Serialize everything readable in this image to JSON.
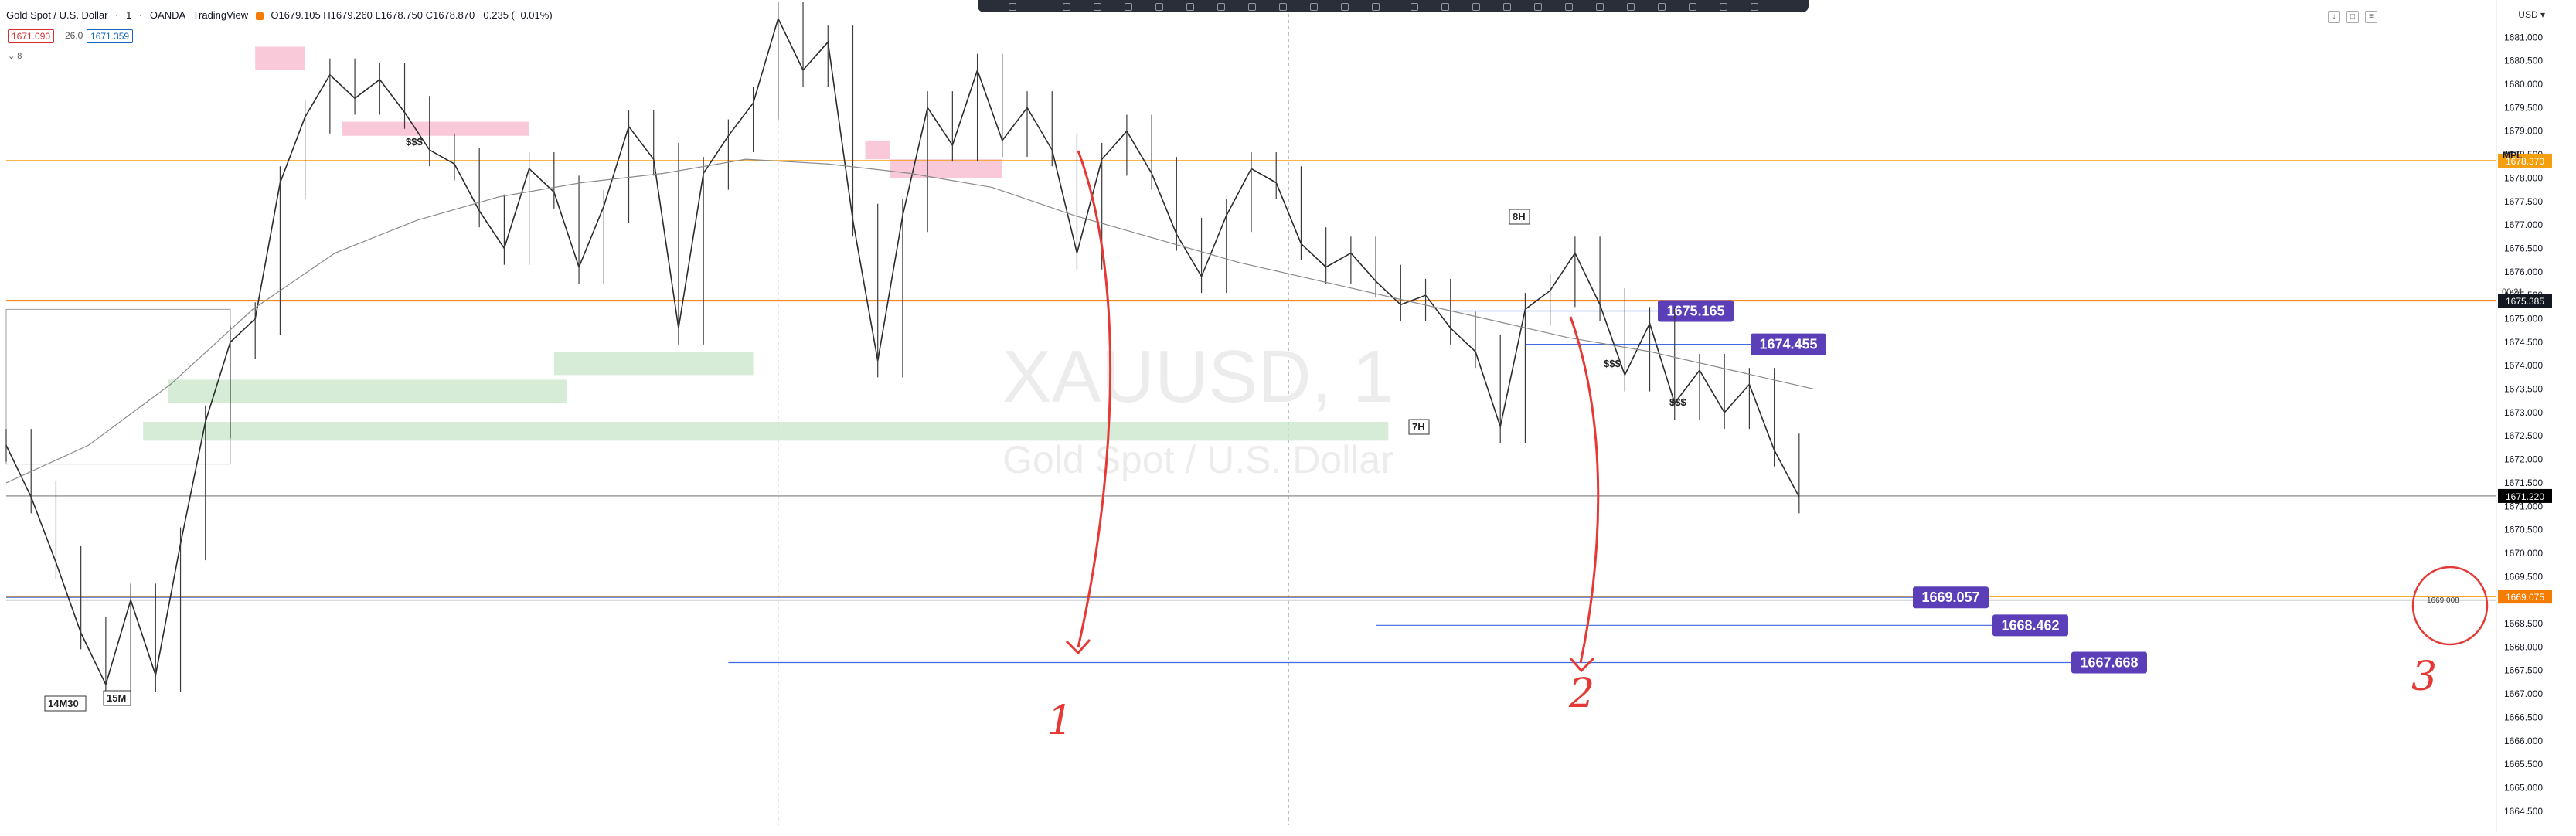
{
  "header": {
    "symbol": "Gold Spot / U.S. Dollar",
    "interval": "1",
    "broker": "OANDA",
    "platform": "TradingView",
    "ohlc": "O1679.105 H1679.260 L1678.750 C1678.870 −0.235 (−0.01%)",
    "bid": "1671.090",
    "spread": "26.0",
    "ask": "1671.359",
    "collapse_label": "8"
  },
  "axis": {
    "currency": "USD",
    "y_ticks": [
      "1681.000",
      "1680.500",
      "1680.000",
      "1679.500",
      "1679.000",
      "1678.500",
      "1678.000",
      "1677.500",
      "1677.000",
      "1676.500",
      "1676.000",
      "1675.500",
      "1675.000",
      "1674.500",
      "1674.000",
      "1673.500",
      "1673.000",
      "1672.500",
      "1672.000",
      "1671.500",
      "1671.000",
      "1670.500",
      "1670.000",
      "1669.500",
      "1669.000",
      "1668.500",
      "1668.000",
      "1667.500",
      "1667.000",
      "1666.500",
      "1666.000",
      "1665.500",
      "1665.000",
      "1664.500"
    ],
    "price_tags": [
      {
        "label": "1678.370",
        "color": "#f59e0b"
      },
      {
        "label": "1675.385",
        "color": "#131722"
      },
      {
        "label": "1671.220",
        "color": "#000000"
      },
      {
        "label": "1669.075",
        "color": "#f57c00"
      }
    ],
    "timer": "00:21"
  },
  "watermark": {
    "ticker": "XAUUSD, 1",
    "name": "Gold Spot / U.S. Dollar"
  },
  "annotations": {
    "mpl": "MPL",
    "small_labels": [
      "$$$",
      "$$$",
      "$$$",
      "8H",
      "7H",
      "14M30",
      "15M"
    ],
    "handwritten": [
      "1",
      "2",
      "3"
    ],
    "circled_value": "1669.008"
  },
  "chart_data": {
    "type": "line",
    "title": "",
    "xlabel": "",
    "ylabel": "",
    "ylim": [
      1664.2,
      1681.5
    ],
    "x_index_range": [
      0,
      100
    ],
    "series": [
      {
        "x": [
          0,
          1,
          2,
          3,
          4,
          5,
          6,
          7,
          8,
          9,
          10,
          11,
          12,
          13,
          14,
          15,
          16,
          17,
          18,
          19,
          20,
          21,
          22,
          23,
          24,
          25,
          26,
          27,
          28,
          29,
          30,
          31,
          32,
          33,
          34,
          35,
          36,
          37,
          38,
          39,
          40,
          41,
          42,
          43,
          44,
          45,
          46,
          47,
          48,
          49,
          50,
          51,
          52,
          53,
          54,
          55,
          56,
          57,
          58,
          59,
          60,
          61,
          62,
          63,
          64,
          65,
          66,
          67,
          68,
          69,
          70,
          71,
          72
        ],
        "values": [
          1672.3,
          1671.2,
          1669.8,
          1668.3,
          1667.2,
          1669.0,
          1667.4,
          1670.2,
          1672.8,
          1674.5,
          1675.0,
          1677.9,
          1679.3,
          1680.2,
          1679.7,
          1680.1,
          1679.4,
          1678.6,
          1678.3,
          1677.3,
          1676.5,
          1678.2,
          1677.7,
          1676.1,
          1677.4,
          1679.1,
          1678.4,
          1674.8,
          1678.1,
          1678.9,
          1679.6,
          1681.4,
          1680.3,
          1680.9,
          1677.1,
          1674.1,
          1677.2,
          1679.5,
          1678.7,
          1680.3,
          1678.8,
          1679.5,
          1678.6,
          1676.4,
          1678.4,
          1679.0,
          1678.1,
          1676.8,
          1675.9,
          1677.2,
          1678.2,
          1677.9,
          1676.6,
          1676.1,
          1676.4,
          1675.8,
          1675.3,
          1675.5,
          1674.8,
          1674.3,
          1672.7,
          1675.2,
          1675.6,
          1676.4,
          1675.3,
          1673.8,
          1674.9,
          1673.2,
          1673.9,
          1673.0,
          1673.6,
          1672.2,
          1671.2
        ]
      },
      {
        "name": "",
        "values": [
          1671.5,
          1672.3,
          1673.6,
          1675.2,
          1676.4,
          1677.1,
          1677.6,
          1677.9,
          1678.1,
          1678.4,
          1678.3,
          1678.1,
          1677.8,
          1677.2,
          1676.7,
          1676.2,
          1675.8,
          1675.4,
          1675.0,
          1674.6,
          1674.3,
          1673.9,
          1673.5
        ]
      }
    ],
    "levels": [
      {
        "price": 1678.37,
        "color": "#f59e0b",
        "kind": "horizontal"
      },
      {
        "price": 1675.385,
        "color": "#f57c00",
        "kind": "horizontal"
      },
      {
        "price": 1669.075,
        "color": "#f59e0b",
        "kind": "horizontal"
      },
      {
        "price": 1669.0,
        "color": "#9e9e9e",
        "kind": "horizontal"
      },
      {
        "price": 1671.22,
        "color": "#9e9e9e",
        "kind": "horizontal"
      }
    ],
    "targets": [
      {
        "label": "1675.165",
        "from_x": 58,
        "price": 1675.165
      },
      {
        "label": "1674.455",
        "from_x": 61,
        "price": 1674.455
      },
      {
        "label": "1669.057",
        "from_x": 0,
        "price": 1669.057
      },
      {
        "label": "1668.462",
        "from_x": 55,
        "price": 1668.462
      },
      {
        "label": "1667.668",
        "from_x": 29,
        "price": 1667.668
      }
    ],
    "target_color": "#5b3fb8",
    "zones_red": [
      {
        "x0": 10,
        "x1": 12,
        "p0": 1680.3,
        "p1": 1680.8
      },
      {
        "x0": 13.5,
        "x1": 21,
        "p0": 1678.9,
        "p1": 1679.2
      },
      {
        "x0": 34.5,
        "x1": 35.5,
        "p0": 1678.4,
        "p1": 1678.8
      },
      {
        "x0": 35.5,
        "x1": 40,
        "p0": 1678.0,
        "p1": 1678.4
      }
    ],
    "zones_green": [
      {
        "x0": 6.5,
        "x1": 22.5,
        "p0": 1673.2,
        "p1": 1673.7
      },
      {
        "x0": 22,
        "x1": 30,
        "p0": 1673.8,
        "p1": 1674.3
      },
      {
        "x0": 5.5,
        "x1": 55.5,
        "p0": 1672.4,
        "p1": 1672.8
      }
    ],
    "vertical_dashed_at": [
      31,
      51.5
    ]
  }
}
